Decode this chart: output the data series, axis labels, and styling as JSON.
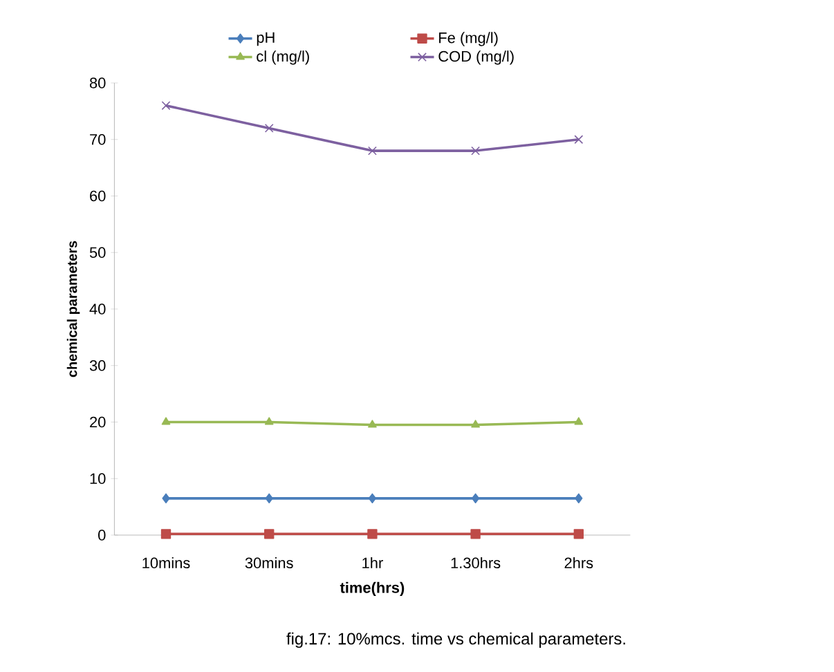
{
  "chart_data": {
    "type": "line",
    "xlabel": "time(hrs)",
    "ylabel": "chemical parameters",
    "categories": [
      "10mins",
      "30mins",
      "1hr",
      "1.30hrs",
      "2hrs"
    ],
    "series": [
      {
        "name": "pH",
        "color": "#4a7ebb",
        "marker": "diamond",
        "values": [
          6.5,
          6.5,
          6.5,
          6.5,
          6.5
        ]
      },
      {
        "name": "Fe (mg/l)",
        "color": "#be4b48",
        "marker": "square",
        "values": [
          0.2,
          0.2,
          0.2,
          0.2,
          0.2
        ]
      },
      {
        "name": "cl (mg/l)",
        "color": "#98b954",
        "marker": "triangle",
        "values": [
          20,
          20,
          19.5,
          19.5,
          20
        ]
      },
      {
        "name": "COD (mg/l)",
        "color": "#7d60a0",
        "marker": "cross",
        "values": [
          76,
          72,
          68,
          68,
          70
        ]
      }
    ],
    "ylim": [
      0,
      80
    ],
    "yticks": [
      0,
      10,
      20,
      30,
      40,
      50,
      60,
      70,
      80
    ],
    "grid": false,
    "legend": "top",
    "line_style": "solid",
    "annotations": [
      "fig.17: 10%mcs. time vs chemical parameters."
    ]
  }
}
